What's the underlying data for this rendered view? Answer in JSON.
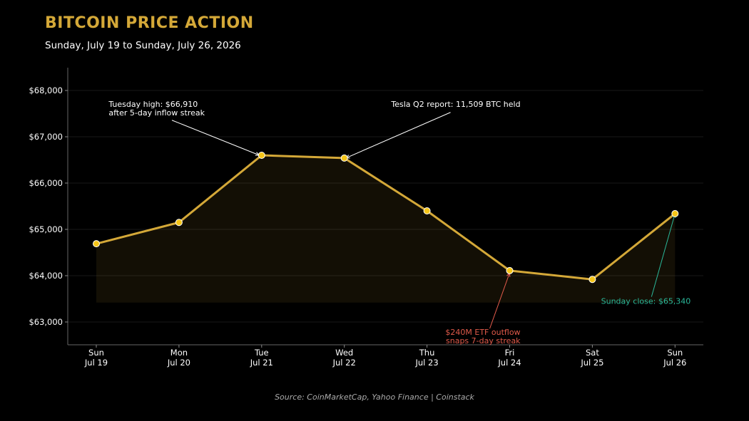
{
  "header": {
    "title": "BITCOIN PRICE ACTION",
    "subtitle": "Sunday, July 19 to Sunday, July 26, 2026"
  },
  "footer": {
    "source": "Source: CoinMarketCap, Yahoo Finance  |  Coinstack"
  },
  "colors": {
    "background": "#000000",
    "line": "#d4a838",
    "marker": "#f5c518",
    "title": "#d4a838",
    "annotation_default": "#ffffff",
    "annotation_negative": "#e05a4a",
    "annotation_positive": "#2ab89a"
  },
  "chart_data": {
    "type": "line",
    "x_labels": [
      [
        "Sun",
        "Jul 19"
      ],
      [
        "Mon",
        "Jul 20"
      ],
      [
        "Tue",
        "Jul 21"
      ],
      [
        "Wed",
        "Jul 22"
      ],
      [
        "Thu",
        "Jul 23"
      ],
      [
        "Fri",
        "Jul 24"
      ],
      [
        "Sat",
        "Jul 25"
      ],
      [
        "Sun",
        "Jul 26"
      ]
    ],
    "values": [
      64690,
      65150,
      66600,
      66540,
      65400,
      64110,
      63920,
      65340
    ],
    "ylim": [
      62500,
      68500
    ],
    "yticks": [
      63000,
      64000,
      65000,
      66000,
      67000,
      68000
    ],
    "ytick_labels": [
      "$63,000",
      "$64,000",
      "$65,000",
      "$66,000",
      "$67,000",
      "$68,000"
    ],
    "area_baseline": 63420,
    "grid": true,
    "annotations": [
      {
        "point": 2,
        "lines": [
          "Tuesday high: $66,910",
          "after 5-day inflow streak"
        ],
        "color": "annotation_default",
        "anchor": "start",
        "text_day": 0.15,
        "text_value": 67650
      },
      {
        "point": 3,
        "lines": [
          "Tesla Q2 report: 11,509 BTC held"
        ],
        "color": "annotation_default",
        "anchor": "end",
        "text_day": 5.13,
        "text_value": 67650
      },
      {
        "point": 5,
        "lines": [
          "$240M ETF outflow",
          "snaps 7-day streak"
        ],
        "color": "annotation_negative",
        "anchor": "end",
        "text_day": 5.13,
        "text_value": 62720
      },
      {
        "point": 7,
        "lines": [
          "Sunday close: $65,340"
        ],
        "color": "annotation_positive",
        "anchor": "end",
        "text_day": 7.19,
        "text_value": 63390
      }
    ]
  }
}
